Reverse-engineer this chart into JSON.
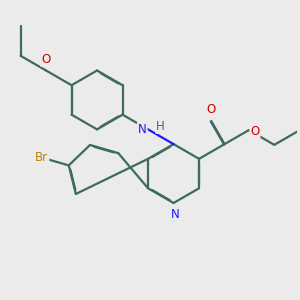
{
  "bg_color": "#ebebeb",
  "bond_color": "#3d6b5e",
  "bond_width": 1.6,
  "dbo": 0.018,
  "atom_colors": {
    "N_amino": "#1a1aff",
    "N_ring": "#1a1aff",
    "O": "#cc0000",
    "Br": "#b8860b",
    "H": "#3d7060",
    "C": "#3d6b5e"
  },
  "font_size": 8.5
}
